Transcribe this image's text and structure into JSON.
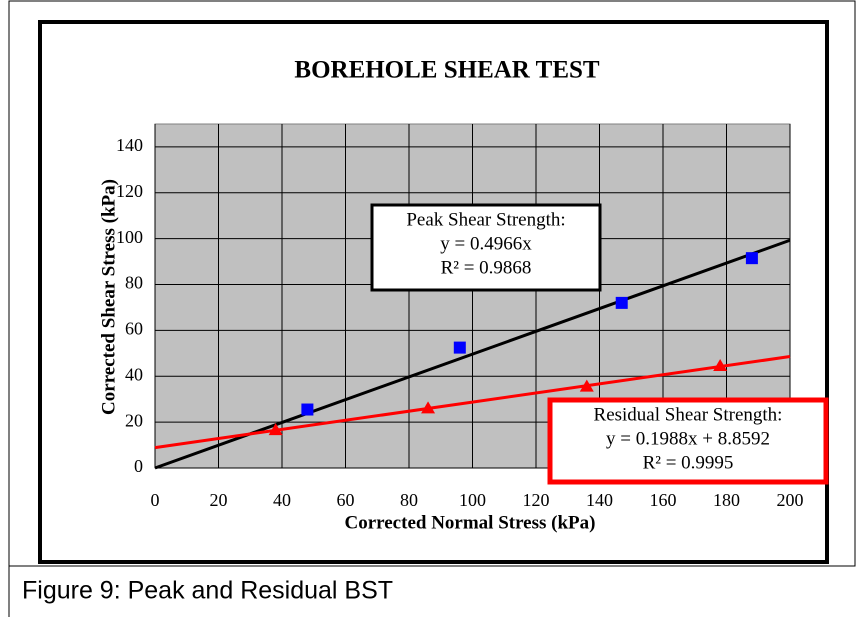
{
  "chart_data": {
    "type": "scatter",
    "title": "BOREHOLE SHEAR TEST",
    "xlabel": "Corrected Normal Stress (kPa)",
    "ylabel": "Corrected Shear Stress (kPa)",
    "xlim": [
      0,
      200
    ],
    "ylim": [
      0,
      150
    ],
    "xticks": [
      0,
      20,
      40,
      60,
      80,
      100,
      120,
      140,
      160,
      180,
      200
    ],
    "yticks": [
      0,
      20,
      40,
      60,
      80,
      100,
      120,
      140
    ],
    "grid": true,
    "series": [
      {
        "color": "#0000ff",
        "marker": "square",
        "x": [
          48,
          96,
          147,
          188
        ],
        "values": [
          25.5,
          52.5,
          72,
          91.5
        ],
        "trend": {
          "color": "#000000",
          "x": [
            0,
            200
          ],
          "values": [
            0,
            99.3
          ]
        }
      },
      {
        "color": "#ff0000",
        "marker": "triangle",
        "x": [
          38,
          86,
          136,
          178
        ],
        "values": [
          16.5,
          26,
          35.5,
          44.5
        ],
        "trend": {
          "color": "#ff0000",
          "x": [
            0,
            200
          ],
          "values": [
            8.9,
            48.6
          ]
        }
      }
    ],
    "annotations": [
      {
        "color": "#000000",
        "lines": [
          "Peak Shear Strength:",
          "y = 0.4966x",
          "R² = 0.9868"
        ]
      },
      {
        "color": "#ff0000",
        "lines": [
          "Residual Shear Strength:",
          "y = 0.1988x + 8.8592",
          "R² = 0.9995"
        ]
      }
    ],
    "caption": "Figure 9: Peak and Residual BST"
  }
}
